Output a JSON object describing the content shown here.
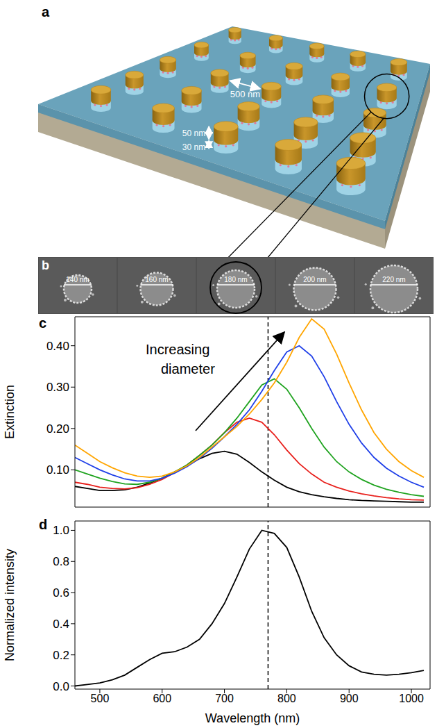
{
  "panel_letters": [
    "a",
    "b",
    "c",
    "d"
  ],
  "schematic": {
    "period_label": "500 nm",
    "gold_height_label": "50 nm",
    "pillar_height_label": "30 nm"
  },
  "sem_images": {
    "diameter_labels": [
      "140 nm",
      "160 nm",
      "180 nm",
      "200 nm",
      "220 nm"
    ]
  },
  "chart_data": [
    {
      "type": "line",
      "y_label": "Extinction",
      "annotation": "Increasing diameter",
      "x": [
        460,
        480,
        500,
        520,
        540,
        560,
        580,
        600,
        620,
        640,
        660,
        680,
        700,
        720,
        740,
        760,
        780,
        800,
        820,
        840,
        860,
        880,
        900,
        920,
        940,
        960,
        980,
        1000,
        1020
      ],
      "xlim": [
        460,
        1030
      ],
      "xticks": [
        500,
        600,
        700,
        800,
        900,
        1000
      ],
      "ylim": [
        0.01,
        0.47
      ],
      "yticks": [
        {
          "value": 0.1,
          "label": "0.10"
        },
        {
          "value": 0.2,
          "label": "0.20"
        },
        {
          "value": 0.3,
          "label": "0.30"
        },
        {
          "value": 0.4,
          "label": "0.40"
        }
      ],
      "tick_labels": "y",
      "vline_x": 770,
      "series": [
        {
          "color": "#000000",
          "values": [
            0.06,
            0.055,
            0.05,
            0.05,
            0.052,
            0.058,
            0.068,
            0.08,
            0.095,
            0.11,
            0.127,
            0.14,
            0.145,
            0.138,
            0.118,
            0.095,
            0.075,
            0.058,
            0.047,
            0.04,
            0.035,
            0.031,
            0.028,
            0.026,
            0.025,
            0.024,
            0.023,
            0.022,
            0.022
          ]
        },
        {
          "color": "#e8201c",
          "values": [
            0.07,
            0.065,
            0.058,
            0.055,
            0.054,
            0.057,
            0.065,
            0.077,
            0.093,
            0.112,
            0.135,
            0.16,
            0.19,
            0.215,
            0.225,
            0.215,
            0.185,
            0.148,
            0.115,
            0.09,
            0.07,
            0.058,
            0.049,
            0.042,
            0.037,
            0.033,
            0.03,
            0.028,
            0.027
          ]
        },
        {
          "color": "#1fa31f",
          "values": [
            0.1,
            0.09,
            0.08,
            0.072,
            0.066,
            0.065,
            0.07,
            0.08,
            0.095,
            0.112,
            0.135,
            0.16,
            0.19,
            0.225,
            0.265,
            0.305,
            0.32,
            0.295,
            0.25,
            0.2,
            0.155,
            0.12,
            0.095,
            0.077,
            0.063,
            0.053,
            0.046,
            0.04,
            0.036
          ]
        },
        {
          "color": "#1f3fe8",
          "values": [
            0.13,
            0.115,
            0.1,
            0.088,
            0.078,
            0.073,
            0.073,
            0.08,
            0.092,
            0.108,
            0.128,
            0.152,
            0.18,
            0.21,
            0.245,
            0.29,
            0.34,
            0.385,
            0.4,
            0.375,
            0.325,
            0.265,
            0.21,
            0.165,
            0.13,
            0.104,
            0.085,
            0.07,
            0.058
          ]
        },
        {
          "color": "#ffa500",
          "values": [
            0.16,
            0.14,
            0.12,
            0.105,
            0.093,
            0.085,
            0.082,
            0.085,
            0.095,
            0.11,
            0.13,
            0.155,
            0.18,
            0.205,
            0.235,
            0.27,
            0.31,
            0.36,
            0.42,
            0.465,
            0.44,
            0.38,
            0.31,
            0.245,
            0.19,
            0.15,
            0.12,
            0.098,
            0.082
          ]
        }
      ]
    },
    {
      "type": "line",
      "x_label": "Wavelength (nm)",
      "y_label": "Normalized intensity",
      "x": [
        460,
        480,
        500,
        520,
        540,
        560,
        580,
        600,
        620,
        640,
        660,
        680,
        700,
        720,
        740,
        760,
        780,
        800,
        820,
        840,
        860,
        880,
        900,
        920,
        940,
        960,
        980,
        1000,
        1020
      ],
      "xlim": [
        460,
        1030
      ],
      "xticks": [
        500,
        600,
        700,
        800,
        900,
        1000
      ],
      "ylim": [
        -0.02,
        1.06
      ],
      "yticks": [
        {
          "value": 0,
          "label": "0.0"
        },
        {
          "value": 0.2,
          "label": "0.2"
        },
        {
          "value": 0.4,
          "label": "0.4"
        },
        {
          "value": 0.6,
          "label": "0.6"
        },
        {
          "value": 0.8,
          "label": "0.8"
        },
        {
          "value": 1,
          "label": "1.0"
        }
      ],
      "vline_x": 770,
      "series": [
        {
          "color": "#000000",
          "values": [
            0.0,
            0.01,
            0.02,
            0.04,
            0.07,
            0.12,
            0.17,
            0.21,
            0.22,
            0.25,
            0.3,
            0.4,
            0.53,
            0.7,
            0.88,
            1.0,
            0.98,
            0.89,
            0.7,
            0.48,
            0.31,
            0.2,
            0.13,
            0.09,
            0.075,
            0.07,
            0.075,
            0.085,
            0.1
          ]
        }
      ]
    }
  ]
}
